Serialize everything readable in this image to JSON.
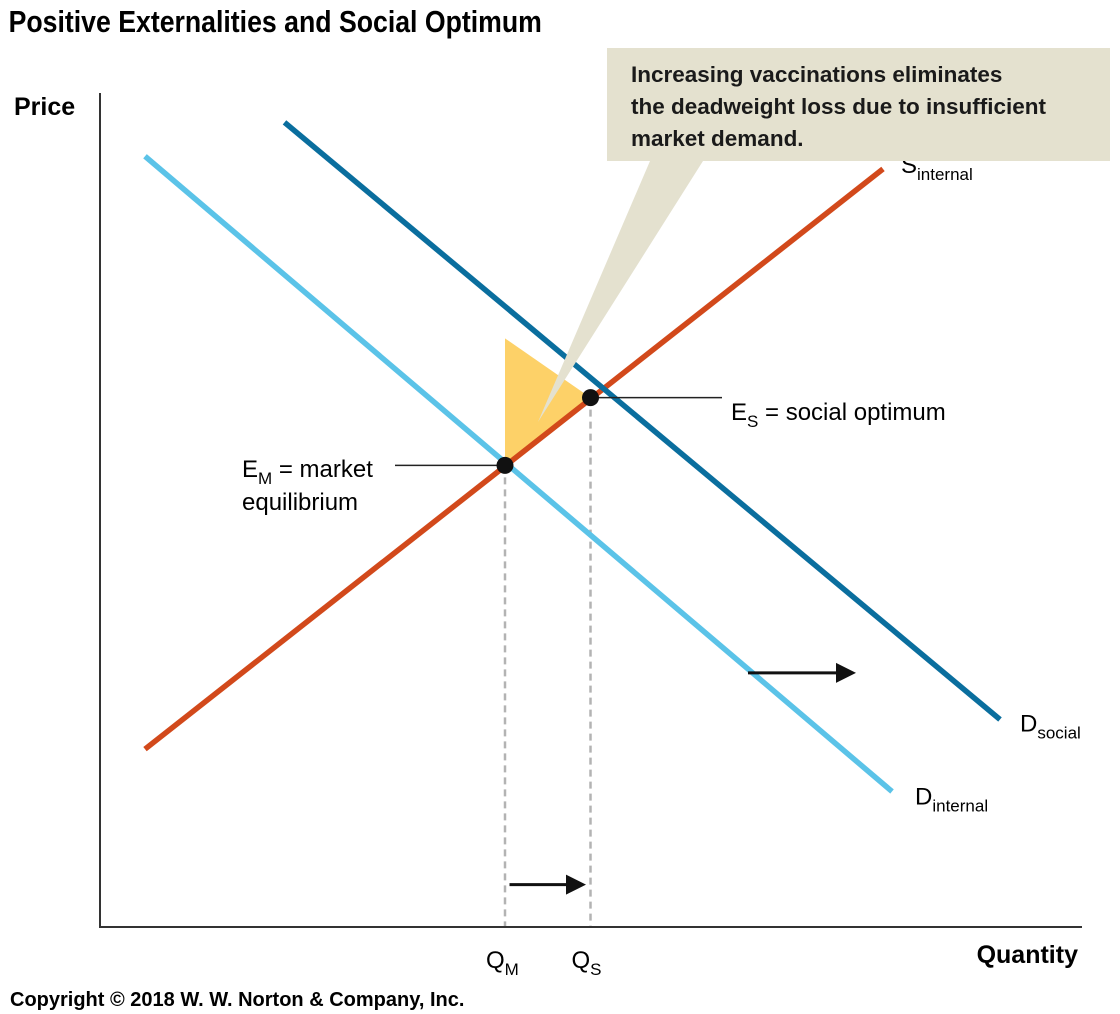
{
  "chart_data": {
    "type": "line",
    "title": "Positive Externalities and Social Optimum",
    "xlabel": "Quantity",
    "ylabel": "Price",
    "series": [
      {
        "name_main": "S",
        "name_sub": "internal",
        "x": [
          0.5,
          8.7
        ],
        "y": [
          2.1,
          8.95
        ],
        "color": "#d2491b"
      },
      {
        "name_main": "D",
        "name_sub": "social",
        "x": [
          2.05,
          10.0
        ],
        "y": [
          9.5,
          2.45
        ],
        "color": "#0a6e9e"
      },
      {
        "name_main": "D",
        "name_sub": "internal",
        "x": [
          0.5,
          8.8
        ],
        "y": [
          9.1,
          1.6
        ],
        "color": "#5bc3e8"
      }
    ],
    "points": [
      {
        "id": "em",
        "x": 4.5,
        "y": 5.45,
        "label_main": "E",
        "label_sub": "M",
        "label_rest_line1": " = market",
        "label_line2": "equilibrium"
      },
      {
        "id": "es",
        "x": 5.45,
        "y": 6.25,
        "label_main": "E",
        "label_sub": "S",
        "label_rest": " = social optimum"
      }
    ],
    "ticks": [
      {
        "x": 4.5,
        "main": "Q",
        "sub": "M"
      },
      {
        "x": 5.45,
        "main": "Q",
        "sub": "S"
      }
    ],
    "deadweight_loss": {
      "color": "#fdd168",
      "top_y": 6.95
    },
    "callout": {
      "lines": [
        "Increasing vaccinations eliminates",
        "the deadweight loss due to insufficient",
        "market demand."
      ],
      "color": "#e4e1cf"
    },
    "shift_arrows": [
      {
        "from": [
          7.2,
          3.0
        ],
        "to": [
          8.4,
          3.0
        ]
      },
      {
        "from": [
          4.55,
          0.5
        ],
        "to": [
          5.4,
          0.5
        ]
      }
    ],
    "xlim": [
      0,
      11
    ],
    "ylim": [
      0,
      10
    ],
    "grid": false
  },
  "copyright": "Copyright © 2018 W. W. Norton & Company, Inc."
}
